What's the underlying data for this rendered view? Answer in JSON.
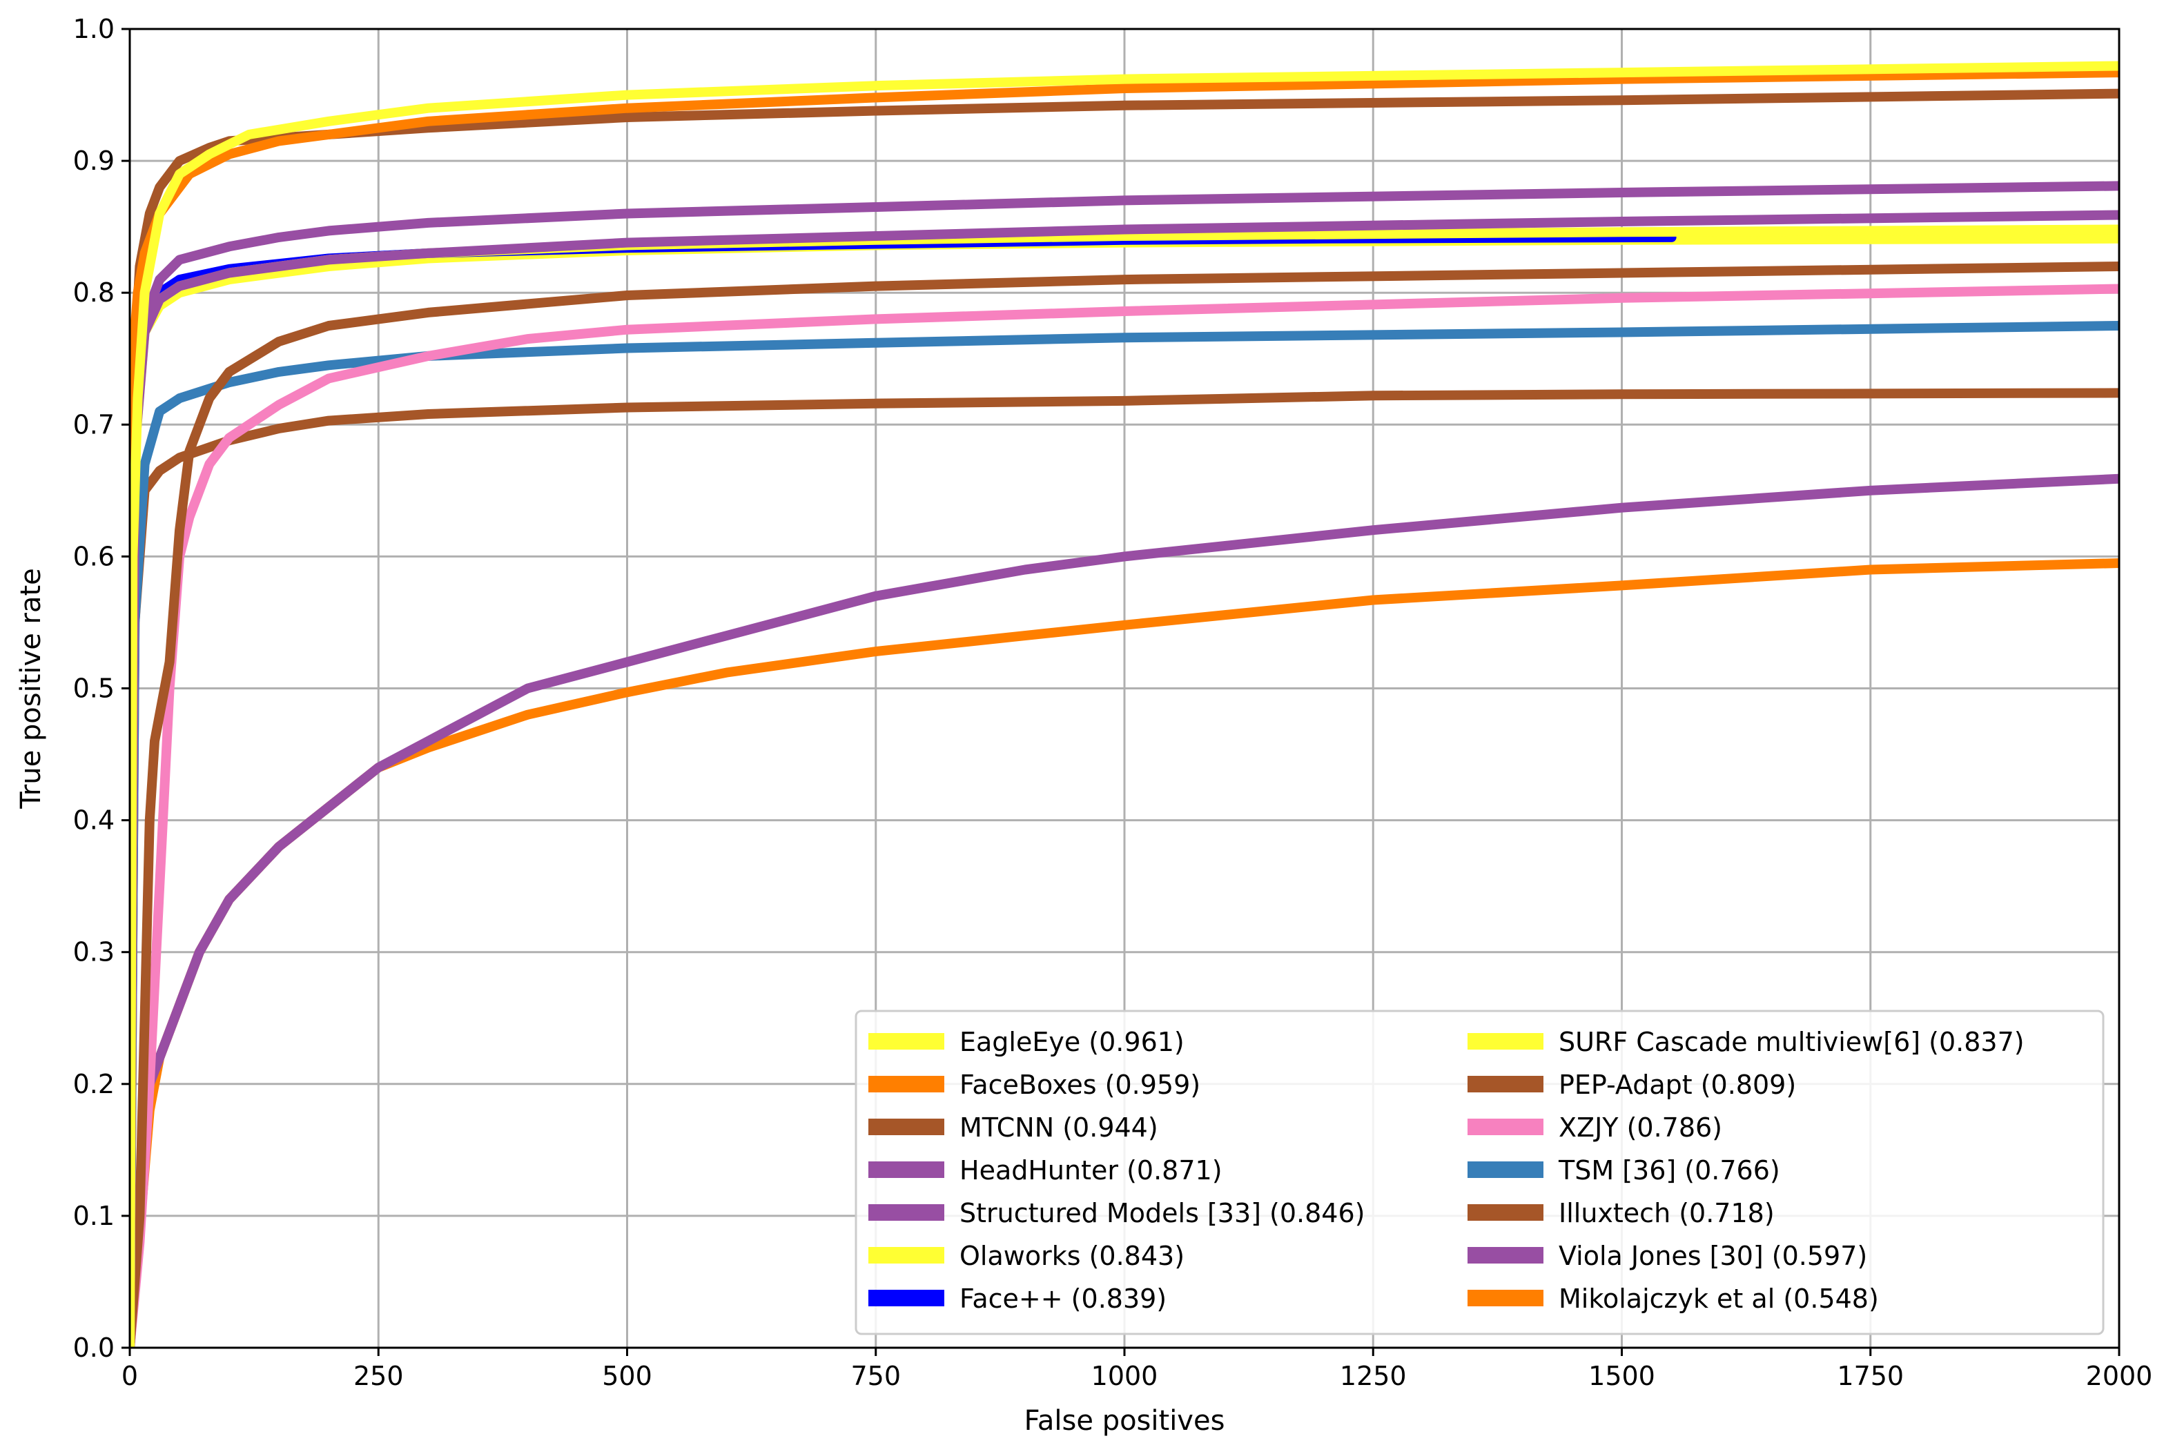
{
  "chart_data": {
    "type": "line",
    "title": "",
    "xlabel": "False positives",
    "ylabel": "True positive rate",
    "xlim": [
      0,
      2000
    ],
    "ylim": [
      0.0,
      1.0
    ],
    "grid": true,
    "legend_position": "lower-right",
    "xticks": [
      0,
      250,
      500,
      750,
      1000,
      1250,
      1500,
      1750,
      2000
    ],
    "yticks": [
      0.0,
      0.1,
      0.2,
      0.3,
      0.4,
      0.5,
      0.6,
      0.7,
      0.8,
      0.9,
      1.0
    ],
    "series": [
      {
        "name": "EagleEye (0.961)",
        "color": "#ffff33",
        "x": [
          0,
          3,
          8,
          15,
          30,
          50,
          80,
          120,
          200,
          300,
          500,
          750,
          1000,
          1500,
          2000
        ],
        "y": [
          0.0,
          0.6,
          0.72,
          0.8,
          0.86,
          0.89,
          0.905,
          0.92,
          0.93,
          0.94,
          0.95,
          0.957,
          0.962,
          0.967,
          0.972
        ]
      },
      {
        "name": "FaceBoxes (0.959)",
        "color": "#ff7f00",
        "x": [
          0,
          3,
          8,
          15,
          30,
          60,
          100,
          150,
          200,
          300,
          500,
          750,
          1000,
          1500,
          2000
        ],
        "y": [
          0.0,
          0.75,
          0.8,
          0.83,
          0.86,
          0.89,
          0.905,
          0.915,
          0.92,
          0.93,
          0.94,
          0.948,
          0.955,
          0.962,
          0.967
        ]
      },
      {
        "name": "MTCNN (0.944)",
        "color": "#a65628",
        "x": [
          0,
          2,
          5,
          10,
          20,
          30,
          50,
          80,
          100,
          200,
          300,
          500,
          750,
          1000,
          1500,
          2000
        ],
        "y": [
          0.0,
          0.6,
          0.75,
          0.82,
          0.86,
          0.88,
          0.9,
          0.91,
          0.915,
          0.92,
          0.925,
          0.933,
          0.938,
          0.942,
          0.946,
          0.951
        ]
      },
      {
        "name": "HeadHunter (0.871)",
        "color": "#984ea3",
        "x": [
          0,
          5,
          15,
          30,
          50,
          100,
          150,
          200,
          300,
          500,
          750,
          1000,
          1500,
          2000
        ],
        "y": [
          0.0,
          0.7,
          0.78,
          0.81,
          0.825,
          0.835,
          0.842,
          0.847,
          0.853,
          0.86,
          0.865,
          0.87,
          0.876,
          0.881
        ]
      },
      {
        "name": "Structured Models [33] (0.846)",
        "color": "#984ea3",
        "x": [
          0,
          5,
          15,
          30,
          50,
          100,
          150,
          200,
          300,
          500,
          750,
          1000,
          1500,
          2000
        ],
        "y": [
          0.0,
          0.68,
          0.77,
          0.795,
          0.805,
          0.815,
          0.82,
          0.825,
          0.83,
          0.838,
          0.843,
          0.848,
          0.854,
          0.859
        ]
      },
      {
        "name": "Olaworks (0.843)",
        "color": "#ffff33",
        "x": [
          0,
          5,
          15,
          30,
          50,
          100,
          150,
          200,
          300,
          500,
          750,
          1000,
          1500,
          2000
        ],
        "y": [
          0.0,
          0.7,
          0.775,
          0.795,
          0.805,
          0.815,
          0.82,
          0.825,
          0.83,
          0.836,
          0.84,
          0.843,
          0.846,
          0.848
        ]
      },
      {
        "name": "Face++ (0.839)",
        "color": "#0000ff",
        "x": [
          0,
          5,
          15,
          30,
          50,
          100,
          150,
          200,
          300,
          500,
          750,
          1000,
          1200,
          1550
        ],
        "y": [
          0.0,
          0.7,
          0.78,
          0.8,
          0.81,
          0.818,
          0.822,
          0.826,
          0.83,
          0.834,
          0.837,
          0.84,
          0.841,
          0.842
        ]
      },
      {
        "name": "SURF Cascade multiview[6] (0.837)",
        "color": "#ffff33",
        "x": [
          0,
          5,
          15,
          30,
          50,
          100,
          150,
          200,
          300,
          500,
          750,
          1000,
          1500,
          2000
        ],
        "y": [
          0.0,
          0.68,
          0.77,
          0.79,
          0.8,
          0.81,
          0.815,
          0.82,
          0.826,
          0.832,
          0.836,
          0.838,
          0.84,
          0.841
        ]
      },
      {
        "name": "PEP-Adapt (0.809)",
        "color": "#a65628",
        "x": [
          0,
          10,
          15,
          20,
          25,
          30,
          40,
          50,
          60,
          70,
          80,
          100,
          150,
          200,
          300,
          500,
          750,
          1000,
          1500,
          2000
        ],
        "y": [
          0.0,
          0.1,
          0.25,
          0.4,
          0.46,
          0.48,
          0.52,
          0.62,
          0.68,
          0.7,
          0.72,
          0.74,
          0.763,
          0.775,
          0.785,
          0.798,
          0.805,
          0.81,
          0.815,
          0.82
        ]
      },
      {
        "name": "XZJY (0.786)",
        "color": "#f781bf",
        "x": [
          0,
          10,
          20,
          30,
          40,
          50,
          60,
          80,
          100,
          150,
          200,
          300,
          400,
          500,
          750,
          1000,
          1500,
          2000
        ],
        "y": [
          0.0,
          0.08,
          0.2,
          0.35,
          0.5,
          0.6,
          0.63,
          0.67,
          0.69,
          0.715,
          0.735,
          0.752,
          0.765,
          0.772,
          0.78,
          0.786,
          0.796,
          0.803
        ]
      },
      {
        "name": "TSM [36] (0.766)",
        "color": "#377eb8",
        "x": [
          0,
          5,
          15,
          30,
          50,
          100,
          150,
          200,
          300,
          500,
          750,
          1000,
          1500,
          2000
        ],
        "y": [
          0.0,
          0.55,
          0.67,
          0.71,
          0.72,
          0.732,
          0.74,
          0.745,
          0.752,
          0.758,
          0.762,
          0.766,
          0.77,
          0.775
        ]
      },
      {
        "name": "Illuxtech (0.718)",
        "color": "#a65628",
        "x": [
          0,
          5,
          15,
          30,
          50,
          100,
          150,
          200,
          300,
          500,
          750,
          1000,
          1250,
          1500,
          2000
        ],
        "y": [
          0.0,
          0.55,
          0.65,
          0.665,
          0.675,
          0.688,
          0.697,
          0.703,
          0.708,
          0.713,
          0.716,
          0.718,
          0.722,
          0.723,
          0.724
        ]
      },
      {
        "name": "Viola Jones [30] (0.597)",
        "color": "#984ea3",
        "x": [
          0,
          20,
          30,
          50,
          70,
          100,
          150,
          200,
          250,
          300,
          400,
          500,
          600,
          750,
          900,
          1000,
          1250,
          1500,
          1750,
          2000
        ],
        "y": [
          0.0,
          0.2,
          0.22,
          0.26,
          0.3,
          0.34,
          0.38,
          0.41,
          0.44,
          0.46,
          0.5,
          0.52,
          0.54,
          0.57,
          0.59,
          0.6,
          0.62,
          0.637,
          0.65,
          0.659
        ]
      },
      {
        "name": "Mikolajczyk et al (0.548)",
        "color": "#ff7f00",
        "x": [
          0,
          20,
          30,
          50,
          70,
          100,
          150,
          200,
          250,
          300,
          400,
          500,
          600,
          750,
          900,
          1000,
          1250,
          1500,
          1750,
          2000
        ],
        "y": [
          0.0,
          0.18,
          0.22,
          0.26,
          0.3,
          0.34,
          0.38,
          0.41,
          0.44,
          0.455,
          0.48,
          0.497,
          0.512,
          0.528,
          0.54,
          0.548,
          0.567,
          0.578,
          0.59,
          0.595
        ]
      }
    ]
  }
}
